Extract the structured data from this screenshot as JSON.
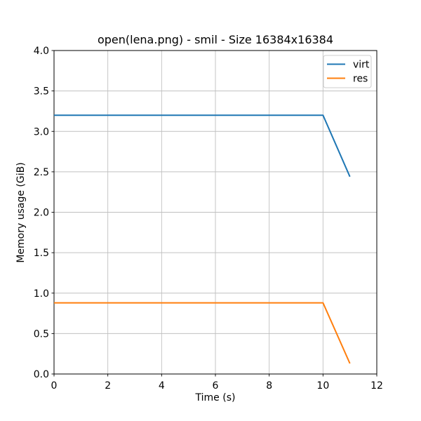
{
  "figure": {
    "background": "#ffffff"
  },
  "chart_data": {
    "type": "line",
    "title": "open(lena.png) - smil - Size 16384x16384",
    "xlabel": "Time (s)",
    "ylabel": "Memory usage (GiB)",
    "xlim": [
      0,
      12
    ],
    "ylim": [
      0.0,
      4.0
    ],
    "xticks": [
      0,
      2,
      4,
      6,
      8,
      10,
      12
    ],
    "xtick_labels": [
      "0",
      "2",
      "4",
      "6",
      "8",
      "10",
      "12"
    ],
    "yticks": [
      0.0,
      0.5,
      1.0,
      1.5,
      2.0,
      2.5,
      3.0,
      3.5,
      4.0
    ],
    "ytick_labels": [
      "0.0",
      "0.5",
      "1.0",
      "1.5",
      "2.0",
      "2.5",
      "3.0",
      "3.5",
      "4.0"
    ],
    "grid": true,
    "grid_color": "#c0c0c0",
    "axis_color": "#000000",
    "background_color": "#ffffff",
    "legend": {
      "position": "upper right",
      "border_color": "#cccccc",
      "fill_color": "#ffffff",
      "entries": [
        "virt",
        "res"
      ]
    },
    "x": [
      0,
      1,
      2,
      3,
      4,
      5,
      6,
      7,
      8,
      9,
      10,
      11
    ],
    "series": [
      {
        "name": "virt",
        "color": "#1f77b4",
        "values": [
          3.2,
          3.2,
          3.2,
          3.2,
          3.2,
          3.2,
          3.2,
          3.2,
          3.2,
          3.2,
          3.2,
          2.44
        ]
      },
      {
        "name": "res",
        "color": "#ff7f0e",
        "values": [
          0.88,
          0.88,
          0.88,
          0.88,
          0.88,
          0.88,
          0.88,
          0.88,
          0.88,
          0.88,
          0.88,
          0.13
        ]
      }
    ]
  }
}
